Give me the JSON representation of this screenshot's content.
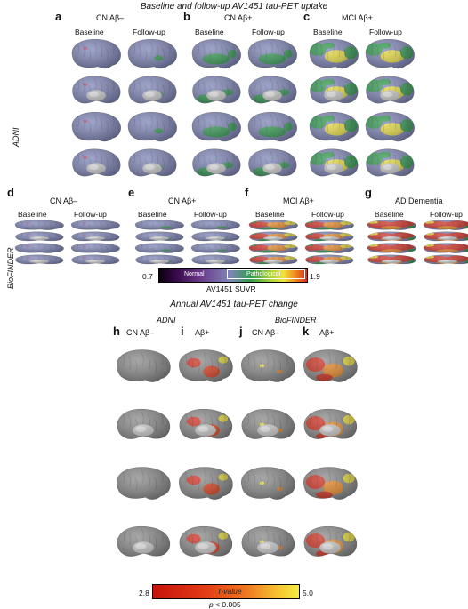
{
  "title_baseline": "Baseline and follow-up AV1451 tau-PET uptake",
  "title_change": "Annual AV1451 tau-PET change",
  "cohorts": {
    "adni": "ADNI",
    "biofinder": "BioFINDER"
  },
  "columns": {
    "baseline": "Baseline",
    "followup": "Follow-up"
  },
  "adni_panels": [
    {
      "letter": "a",
      "group": "CN Aβ–",
      "severity": 0
    },
    {
      "letter": "b",
      "group": "CN Aβ+",
      "severity": 1
    },
    {
      "letter": "c",
      "group": "MCI Aβ+",
      "severity": 2
    }
  ],
  "biofinder_panels": [
    {
      "letter": "d",
      "group": "CN Aβ–",
      "severity": 0
    },
    {
      "letter": "e",
      "group": "CN Aβ+",
      "severity": 0.5
    },
    {
      "letter": "f",
      "group": "MCI Aβ+",
      "severity": 3
    },
    {
      "letter": "g",
      "group": "AD Dementia",
      "severity": 3.5
    }
  ],
  "suvr_colorbar": {
    "min": "0.7",
    "max": "1.9",
    "label": "AV1451 SUVR",
    "normal": "Normal",
    "pathological": "Pathological"
  },
  "change_panels": [
    {
      "letter": "h",
      "group": "CN Aβ–",
      "level": 0
    },
    {
      "letter": "i",
      "group": "Aβ+",
      "level": 2
    },
    {
      "letter": "j",
      "group": "CN Aβ–",
      "level": 1
    },
    {
      "letter": "k",
      "group": "Aβ+",
      "level": 3
    }
  ],
  "tvalue_colorbar": {
    "min": "2.8",
    "max": "5.0",
    "label": "T-value",
    "pvalue": "p < 0.005"
  },
  "colors": {
    "baseline_gray": "#7f86b8",
    "pathological_green": "#2e9a4a",
    "hot_red": "#d62a1a",
    "hot_yellow": "#f1e43a",
    "cortex_gray": "#8a8a8a"
  }
}
